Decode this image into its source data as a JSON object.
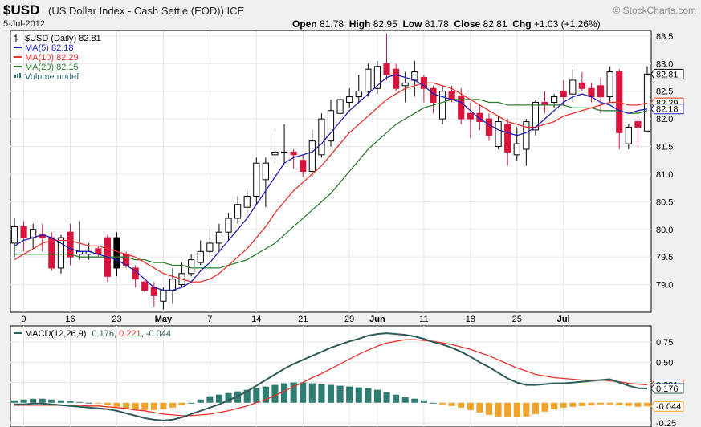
{
  "header": {
    "symbol": "$USD",
    "description": "(US Dollar Index - Cash Settle (EOD))",
    "exchange": "ICE",
    "date": "5-Jul-2012",
    "watermark": "© StockCharts.com",
    "open_label": "Open",
    "open": "81.78",
    "high_label": "High",
    "high": "82.95",
    "low_label": "Low",
    "low": "81.78",
    "close_label": "Close",
    "close": "82.81",
    "chg_label": "Chg",
    "chg": "+1.03 (+1.26%)"
  },
  "legend": [
    {
      "text": "$USD (Daily) 82.81",
      "color": "#000000",
      "kind": "bar"
    },
    {
      "text": "MA(5) 82.18",
      "color": "#1f1fb4",
      "kind": "line"
    },
    {
      "text": "MA(10) 82.29",
      "color": "#e8312a",
      "kind": "line"
    },
    {
      "text": "MA(20) 82.15",
      "color": "#2e7d32",
      "kind": "line"
    },
    {
      "text": "Volume undef",
      "color": "#2e6b6b",
      "kind": "vol"
    }
  ],
  "macd_legend": {
    "label": "MACD(12,26,9)",
    "macd": "0.176",
    "signal": "0.221",
    "hist": "-0.044"
  },
  "colors": {
    "up": "#ffffff",
    "down": "#d6143c",
    "black": "#000000",
    "ma5": "#1f1fb4",
    "ma10": "#e8312a",
    "ma20": "#2e7d32",
    "macd": "#2e5a5a",
    "signal": "#e8312a",
    "hist_pos": "#2e7d73",
    "hist_neg": "#f2a32c"
  },
  "chart_data": [
    {
      "type": "candlestick",
      "title": "$USD (Daily)",
      "ylim": [
        78.5,
        83.6
      ],
      "y_ticks": [
        "79.0",
        "79.5",
        "80.0",
        "80.5",
        "81.0",
        "81.5",
        "82.0",
        "82.5",
        "83.0",
        "83.5"
      ],
      "x_ticks": [
        {
          "label": "9",
          "index": 1
        },
        {
          "label": "16",
          "index": 6
        },
        {
          "label": "23",
          "index": 11
        },
        {
          "label": "May",
          "index": 16
        },
        {
          "label": "7",
          "index": 21
        },
        {
          "label": "14",
          "index": 26
        },
        {
          "label": "21",
          "index": 31
        },
        {
          "label": "29",
          "index": 36
        },
        {
          "label": "Jun",
          "index": 39
        },
        {
          "label": "11",
          "index": 44
        },
        {
          "label": "18",
          "index": 49
        },
        {
          "label": "25",
          "index": 54
        },
        {
          "label": "Jul",
          "index": 59
        }
      ],
      "price_labels": [
        "82.81",
        "82.29",
        "82.18"
      ],
      "candles": [
        {
          "o": 79.75,
          "h": 80.2,
          "l": 79.5,
          "c": 80.05
        },
        {
          "o": 80.05,
          "h": 80.15,
          "l": 79.6,
          "c": 79.85
        },
        {
          "o": 79.85,
          "h": 80.1,
          "l": 79.65,
          "c": 80.0
        },
        {
          "o": 79.9,
          "h": 80.1,
          "l": 79.6,
          "c": 79.85
        },
        {
          "o": 79.85,
          "h": 79.95,
          "l": 79.25,
          "c": 79.3
        },
        {
          "o": 79.3,
          "h": 79.9,
          "l": 79.2,
          "c": 79.85
        },
        {
          "o": 79.95,
          "h": 80.1,
          "l": 79.35,
          "c": 79.5
        },
        {
          "o": 79.55,
          "h": 80.15,
          "l": 79.45,
          "c": 79.6
        },
        {
          "o": 79.55,
          "h": 79.75,
          "l": 79.45,
          "c": 79.6
        },
        {
          "o": 79.65,
          "h": 79.7,
          "l": 79.5,
          "c": 79.55
        },
        {
          "o": 79.85,
          "h": 79.9,
          "l": 79.05,
          "c": 79.15
        },
        {
          "o": 79.85,
          "h": 79.95,
          "l": 79.15,
          "c": 79.3,
          "black": true
        },
        {
          "o": 79.55,
          "h": 79.6,
          "l": 79.3,
          "c": 79.35
        },
        {
          "o": 79.3,
          "h": 79.35,
          "l": 78.95,
          "c": 79.1
        },
        {
          "o": 79.05,
          "h": 79.1,
          "l": 78.85,
          "c": 78.9
        },
        {
          "o": 78.95,
          "h": 79.05,
          "l": 78.6,
          "c": 78.8
        },
        {
          "o": 78.7,
          "h": 78.95,
          "l": 78.55,
          "c": 78.9
        },
        {
          "o": 78.9,
          "h": 79.3,
          "l": 78.65,
          "c": 79.1
        },
        {
          "o": 79.0,
          "h": 79.4,
          "l": 78.95,
          "c": 79.2
        },
        {
          "o": 79.2,
          "h": 79.55,
          "l": 79.15,
          "c": 79.45
        },
        {
          "o": 79.4,
          "h": 79.8,
          "l": 79.35,
          "c": 79.6
        },
        {
          "o": 79.6,
          "h": 80.0,
          "l": 79.5,
          "c": 79.75
        },
        {
          "o": 79.75,
          "h": 80.1,
          "l": 79.6,
          "c": 79.95
        },
        {
          "o": 79.95,
          "h": 80.3,
          "l": 79.8,
          "c": 80.2
        },
        {
          "o": 80.2,
          "h": 80.6,
          "l": 80.1,
          "c": 80.45
        },
        {
          "o": 80.4,
          "h": 80.7,
          "l": 80.3,
          "c": 80.6
        },
        {
          "o": 80.6,
          "h": 81.3,
          "l": 80.45,
          "c": 81.2
        },
        {
          "o": 80.9,
          "h": 81.3,
          "l": 80.4,
          "c": 81.2
        },
        {
          "o": 81.35,
          "h": 81.8,
          "l": 81.2,
          "c": 81.4
        },
        {
          "o": 81.4,
          "h": 81.9,
          "l": 81.2,
          "c": 81.4
        },
        {
          "o": 81.4,
          "h": 81.45,
          "l": 81.1,
          "c": 81.35
        },
        {
          "o": 81.25,
          "h": 81.35,
          "l": 80.95,
          "c": 81.05
        },
        {
          "o": 81.05,
          "h": 81.8,
          "l": 80.95,
          "c": 81.6
        },
        {
          "o": 81.35,
          "h": 82.1,
          "l": 81.3,
          "c": 82.0
        },
        {
          "o": 81.6,
          "h": 82.35,
          "l": 81.5,
          "c": 82.15
        },
        {
          "o": 82.1,
          "h": 82.4,
          "l": 82.0,
          "c": 82.35
        },
        {
          "o": 82.3,
          "h": 82.55,
          "l": 82.2,
          "c": 82.4
        },
        {
          "o": 82.4,
          "h": 82.8,
          "l": 82.3,
          "c": 82.5
        },
        {
          "o": 82.5,
          "h": 83.0,
          "l": 82.4,
          "c": 82.9
        },
        {
          "o": 82.55,
          "h": 83.05,
          "l": 82.45,
          "c": 82.95
        },
        {
          "o": 83.0,
          "h": 83.55,
          "l": 82.7,
          "c": 82.8
        },
        {
          "o": 82.9,
          "h": 83.0,
          "l": 82.5,
          "c": 82.55
        },
        {
          "o": 82.6,
          "h": 82.85,
          "l": 82.3,
          "c": 82.65
        },
        {
          "o": 82.7,
          "h": 83.05,
          "l": 82.4,
          "c": 82.85
        },
        {
          "o": 82.75,
          "h": 82.8,
          "l": 82.3,
          "c": 82.55
        },
        {
          "o": 82.55,
          "h": 82.6,
          "l": 82.1,
          "c": 82.3
        },
        {
          "o": 82.0,
          "h": 82.6,
          "l": 81.9,
          "c": 82.5
        },
        {
          "o": 82.5,
          "h": 82.6,
          "l": 82.3,
          "c": 82.35
        },
        {
          "o": 82.4,
          "h": 82.55,
          "l": 81.9,
          "c": 82.0
        },
        {
          "o": 82.1,
          "h": 82.3,
          "l": 81.65,
          "c": 82.0
        },
        {
          "o": 82.1,
          "h": 82.25,
          "l": 81.8,
          "c": 81.95
        },
        {
          "o": 82.0,
          "h": 82.1,
          "l": 81.6,
          "c": 81.7
        },
        {
          "o": 81.5,
          "h": 82.05,
          "l": 81.45,
          "c": 81.95
        },
        {
          "o": 81.9,
          "h": 82.0,
          "l": 81.15,
          "c": 81.4
        },
        {
          "o": 81.35,
          "h": 81.85,
          "l": 81.25,
          "c": 81.55
        },
        {
          "o": 81.45,
          "h": 82.0,
          "l": 81.15,
          "c": 81.95
        },
        {
          "o": 81.8,
          "h": 82.35,
          "l": 81.7,
          "c": 82.3
        },
        {
          "o": 82.3,
          "h": 82.5,
          "l": 82.1,
          "c": 82.25
        },
        {
          "o": 82.3,
          "h": 82.45,
          "l": 82.2,
          "c": 82.4
        },
        {
          "o": 82.5,
          "h": 82.7,
          "l": 82.25,
          "c": 82.4
        },
        {
          "o": 82.45,
          "h": 82.9,
          "l": 82.3,
          "c": 82.7
        },
        {
          "o": 82.65,
          "h": 82.85,
          "l": 82.5,
          "c": 82.55
        },
        {
          "o": 82.55,
          "h": 82.65,
          "l": 82.3,
          "c": 82.4
        },
        {
          "o": 82.6,
          "h": 82.75,
          "l": 82.1,
          "c": 82.4
        },
        {
          "o": 82.4,
          "h": 82.95,
          "l": 82.3,
          "c": 82.85
        },
        {
          "o": 82.85,
          "h": 82.9,
          "l": 81.45,
          "c": 81.75
        },
        {
          "o": 81.55,
          "h": 81.9,
          "l": 81.45,
          "c": 81.85
        },
        {
          "o": 81.95,
          "h": 82.0,
          "l": 81.5,
          "c": 81.85
        },
        {
          "o": 81.78,
          "h": 82.95,
          "l": 81.78,
          "c": 82.81
        }
      ],
      "series": [
        {
          "name": "MA(5)",
          "values": [
            79.7,
            79.8,
            79.85,
            79.9,
            79.85,
            79.75,
            79.65,
            79.6,
            79.6,
            79.55,
            79.5,
            79.45,
            79.35,
            79.25,
            79.1,
            78.95,
            78.9,
            78.9,
            78.95,
            79.05,
            79.25,
            79.4,
            79.6,
            79.8,
            80.0,
            80.2,
            80.45,
            80.7,
            80.95,
            81.2,
            81.3,
            81.35,
            81.4,
            81.55,
            81.75,
            81.95,
            82.15,
            82.3,
            82.45,
            82.6,
            82.75,
            82.8,
            82.75,
            82.7,
            82.6,
            82.45,
            82.4,
            82.35,
            82.3,
            82.15,
            82.0,
            81.9,
            81.8,
            81.75,
            81.7,
            81.75,
            81.85,
            82.0,
            82.15,
            82.3,
            82.4,
            82.45,
            82.4,
            82.3,
            82.25,
            82.15,
            82.1,
            82.15,
            82.18
          ]
        },
        {
          "name": "MA(10)",
          "values": [
            79.45,
            79.55,
            79.65,
            79.75,
            79.8,
            79.8,
            79.8,
            79.75,
            79.7,
            79.7,
            79.65,
            79.6,
            79.55,
            79.5,
            79.4,
            79.3,
            79.2,
            79.15,
            79.1,
            79.05,
            79.05,
            79.1,
            79.2,
            79.35,
            79.5,
            79.65,
            79.85,
            80.05,
            80.3,
            80.5,
            80.7,
            80.85,
            81.0,
            81.15,
            81.35,
            81.55,
            81.75,
            81.9,
            82.05,
            82.2,
            82.35,
            82.45,
            82.55,
            82.6,
            82.65,
            82.65,
            82.6,
            82.55,
            82.45,
            82.35,
            82.25,
            82.15,
            82.05,
            81.95,
            81.9,
            81.85,
            81.85,
            81.9,
            81.95,
            82.05,
            82.1,
            82.15,
            82.2,
            82.25,
            82.3,
            82.3,
            82.25,
            82.25,
            82.29
          ]
        },
        {
          "name": "MA(20)",
          "values": [
            79.55,
            79.55,
            79.55,
            79.55,
            79.55,
            79.55,
            79.55,
            79.5,
            79.5,
            79.5,
            79.5,
            79.5,
            79.5,
            79.45,
            79.45,
            79.4,
            79.4,
            79.35,
            79.35,
            79.3,
            79.3,
            79.3,
            79.3,
            79.35,
            79.4,
            79.45,
            79.55,
            79.65,
            79.75,
            79.9,
            80.05,
            80.2,
            80.35,
            80.5,
            80.65,
            80.85,
            81.05,
            81.25,
            81.45,
            81.6,
            81.75,
            81.9,
            82.0,
            82.1,
            82.2,
            82.25,
            82.3,
            82.35,
            82.35,
            82.35,
            82.35,
            82.3,
            82.3,
            82.25,
            82.25,
            82.25,
            82.25,
            82.25,
            82.25,
            82.25,
            82.2,
            82.2,
            82.2,
            82.15,
            82.15,
            82.15,
            82.1,
            82.1,
            82.15
          ]
        }
      ]
    },
    {
      "type": "macd",
      "title": "MACD(12,26,9)",
      "ylim": [
        -0.3,
        0.95
      ],
      "y_ticks": [
        "0.75",
        "0.50",
        "0.25",
        "-0.25"
      ],
      "value_labels": [
        "0.221",
        "0.176",
        "-0.044"
      ],
      "series": [
        {
          "name": "MACD",
          "values": [
            -0.02,
            -0.02,
            -0.01,
            -0.01,
            -0.02,
            -0.03,
            -0.04,
            -0.05,
            -0.06,
            -0.07,
            -0.08,
            -0.1,
            -0.13,
            -0.16,
            -0.19,
            -0.21,
            -0.22,
            -0.21,
            -0.18,
            -0.14,
            -0.1,
            -0.06,
            -0.02,
            0.03,
            0.08,
            0.14,
            0.21,
            0.28,
            0.35,
            0.42,
            0.48,
            0.53,
            0.58,
            0.63,
            0.68,
            0.72,
            0.76,
            0.79,
            0.83,
            0.85,
            0.86,
            0.85,
            0.84,
            0.82,
            0.79,
            0.75,
            0.72,
            0.68,
            0.63,
            0.57,
            0.5,
            0.44,
            0.37,
            0.3,
            0.25,
            0.22,
            0.22,
            0.23,
            0.24,
            0.24,
            0.25,
            0.26,
            0.27,
            0.28,
            0.29,
            0.25,
            0.21,
            0.18,
            0.176
          ]
        },
        {
          "name": "Signal",
          "values": [
            -0.03,
            -0.03,
            -0.03,
            -0.03,
            -0.03,
            -0.03,
            -0.03,
            -0.03,
            -0.04,
            -0.04,
            -0.05,
            -0.06,
            -0.07,
            -0.09,
            -0.1,
            -0.12,
            -0.14,
            -0.15,
            -0.16,
            -0.16,
            -0.15,
            -0.14,
            -0.12,
            -0.1,
            -0.07,
            -0.04,
            0.0,
            0.04,
            0.09,
            0.14,
            0.2,
            0.25,
            0.31,
            0.36,
            0.42,
            0.48,
            0.54,
            0.6,
            0.65,
            0.7,
            0.74,
            0.76,
            0.78,
            0.78,
            0.77,
            0.76,
            0.74,
            0.72,
            0.69,
            0.66,
            0.62,
            0.58,
            0.53,
            0.48,
            0.43,
            0.39,
            0.35,
            0.33,
            0.31,
            0.3,
            0.29,
            0.28,
            0.28,
            0.28,
            0.27,
            0.26,
            0.24,
            0.23,
            0.221
          ]
        },
        {
          "name": "Histogram",
          "values": [
            0.03,
            0.04,
            0.05,
            0.05,
            0.04,
            0.03,
            0.02,
            0.01,
            0.0,
            -0.01,
            -0.03,
            -0.05,
            -0.07,
            -0.08,
            -0.09,
            -0.09,
            -0.08,
            -0.06,
            -0.03,
            0.0,
            0.04,
            0.08,
            0.1,
            0.12,
            0.14,
            0.16,
            0.18,
            0.2,
            0.22,
            0.24,
            0.25,
            0.25,
            0.24,
            0.23,
            0.22,
            0.21,
            0.2,
            0.19,
            0.18,
            0.16,
            0.13,
            0.1,
            0.07,
            0.05,
            0.03,
            0.0,
            -0.02,
            -0.04,
            -0.06,
            -0.09,
            -0.12,
            -0.15,
            -0.17,
            -0.18,
            -0.18,
            -0.17,
            -0.14,
            -0.11,
            -0.08,
            -0.06,
            -0.05,
            -0.04,
            -0.03,
            -0.02,
            -0.02,
            -0.03,
            -0.04,
            -0.05,
            -0.044
          ]
        }
      ]
    }
  ]
}
